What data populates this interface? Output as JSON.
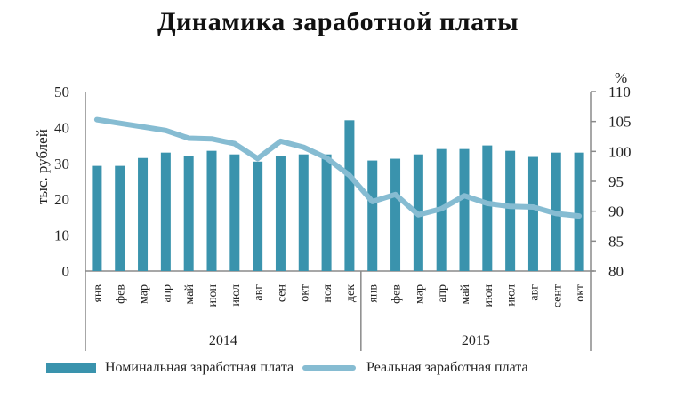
{
  "title": "Динамика заработной платы",
  "colors": {
    "bar": "#3a93ad",
    "line": "#86bcd2",
    "axis": "#8a8a8a"
  },
  "legend": {
    "nominal": "Номинальная заработная плата",
    "real": "Реальная заработная плата"
  },
  "chart_data": {
    "type": "bar+line",
    "title": "Динамика заработной платы",
    "xlabel": "",
    "ylabel": "тыс. рублей",
    "y2label": "%",
    "ylim": [
      0,
      50
    ],
    "y2lim": [
      80,
      110
    ],
    "yticks": [
      0,
      10,
      20,
      30,
      40,
      50
    ],
    "y2ticks": [
      80,
      85,
      90,
      95,
      100,
      105,
      110
    ],
    "grid": false,
    "legend_position": "bottom",
    "groups": [
      {
        "label": "2014",
        "start": 0,
        "count": 12
      },
      {
        "label": "2015",
        "start": 12,
        "count": 10
      }
    ],
    "categories": [
      "янв",
      "фев",
      "мар",
      "апр",
      "май",
      "июн",
      "июл",
      "авг",
      "сен",
      "окт",
      "ноя",
      "дек",
      "янв",
      "фев",
      "мар",
      "апр",
      "май",
      "июн",
      "июл",
      "авг",
      "сент",
      "окт"
    ],
    "series": [
      {
        "name": "Номинальная заработная плата",
        "type": "bar",
        "axis": "left",
        "values": [
          29.3,
          29.3,
          31.5,
          33.0,
          32.0,
          33.5,
          32.5,
          30.5,
          32.0,
          32.5,
          32.5,
          42.0,
          30.8,
          31.3,
          32.5,
          34.0,
          34.0,
          35.0,
          33.5,
          31.8,
          33.0,
          33.0
        ]
      },
      {
        "name": "Реальная заработная плата",
        "type": "line",
        "axis": "right",
        "values": [
          105.3,
          104.7,
          104.1,
          103.5,
          102.2,
          102.1,
          101.3,
          98.8,
          101.7,
          100.7,
          98.9,
          96.0,
          91.6,
          92.8,
          89.4,
          90.4,
          92.6,
          91.3,
          90.8,
          90.7,
          89.6,
          89.2
        ]
      }
    ]
  }
}
